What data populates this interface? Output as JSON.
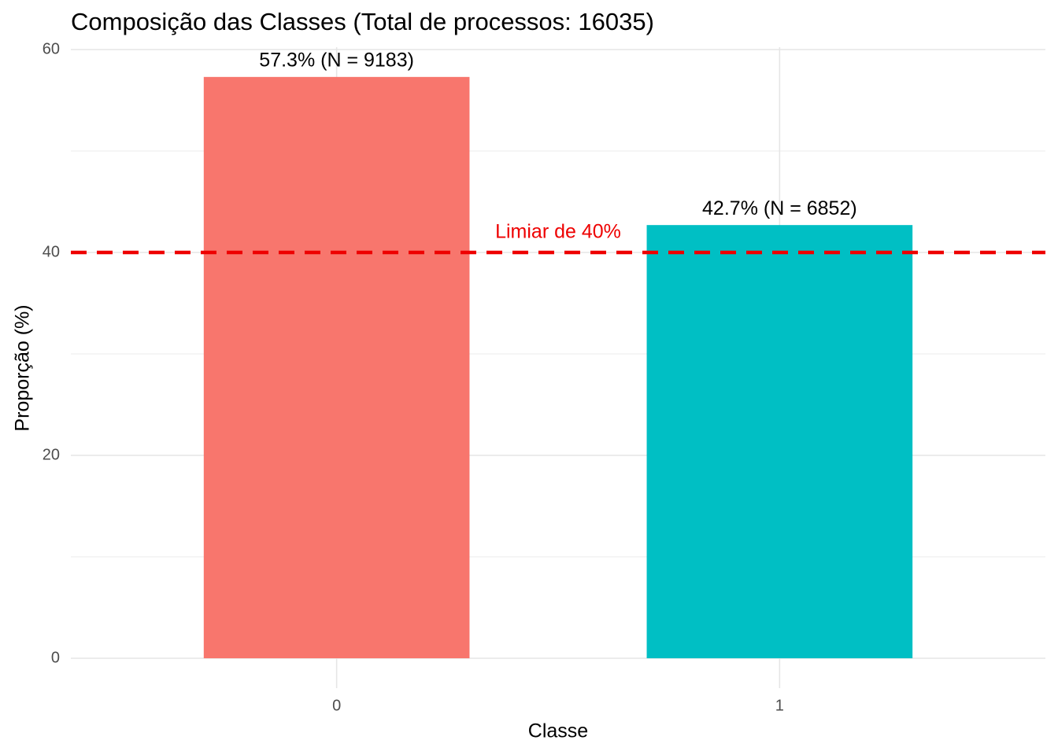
{
  "chart_data": {
    "type": "bar",
    "title": "Composição das Classes (Total de processos: 16035)",
    "x_label": "Classe",
    "y_label": "Proporção (%)",
    "categories": [
      "0",
      "1"
    ],
    "values": [
      57.3,
      42.7
    ],
    "value_labels": [
      "57.3% (N = 9183)",
      "42.7% (N = 6852)"
    ],
    "colors": [
      "#F8766D",
      "#00BFC4"
    ],
    "ylim": [
      0,
      60
    ],
    "yticks": [
      0,
      20,
      40,
      60
    ],
    "minor_yticks": [
      10,
      30,
      50
    ],
    "grid": true,
    "threshold": {
      "value": 40,
      "label": "Limiar de 40%",
      "color": "#EE0000"
    }
  }
}
